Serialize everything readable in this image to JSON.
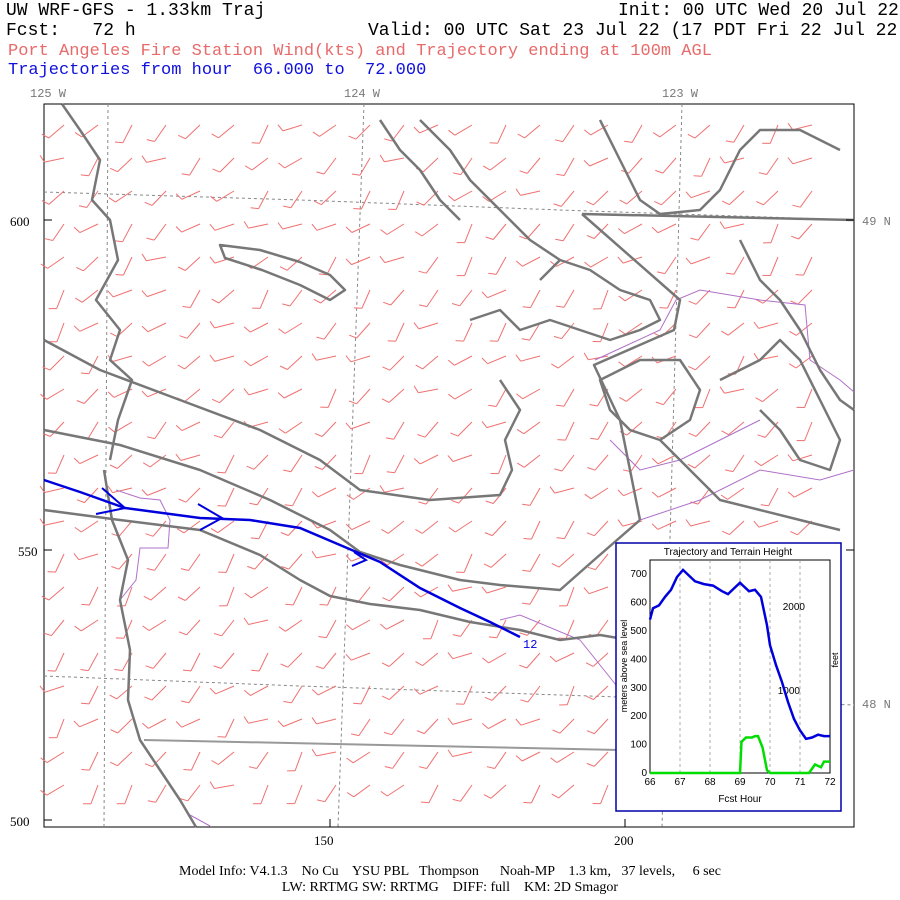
{
  "header": {
    "title": "UW WRF-GFS - 1.33km Traj",
    "init": "Init: 00 UTC Wed 20 Jul 22",
    "fcst": "Fcst:   72 h",
    "valid": "Valid: 00 UTC Sat 23 Jul 22 (17 PDT Fri 22 Jul 22)",
    "subtitle": "Port Angeles Fire Station Wind(kts) and Trajectory ending at 100m AGL",
    "traj_range": "Trajectories from hour  66.000 to  72.000"
  },
  "map": {
    "lon_labels": [
      "125 W",
      "124 W",
      "123 W"
    ],
    "lat_labels": [
      "49 N",
      "48 N"
    ],
    "y_ticks": [
      "600",
      "550",
      "500"
    ],
    "x_ticks": [
      "150",
      "200"
    ],
    "trajectory_end_label": "12",
    "colors": {
      "coast": "#777777",
      "wind_barb": "#f07070",
      "trajectory": "#0000dd",
      "county": "#b070c8",
      "grid": "#888888"
    }
  },
  "inset": {
    "title": "Trajectory and Terrain Height",
    "xlabel": "Fcst Hour",
    "ylabel_left": "meters above sea level",
    "ylabel_right": "feet",
    "x_ticks": [
      "66",
      "67",
      "68",
      "69",
      "70",
      "71",
      "72"
    ],
    "y_ticks_left": [
      "0",
      "100",
      "200",
      "300",
      "400",
      "500",
      "600",
      "700"
    ],
    "y_ticks_right": [
      "1000",
      "2000"
    ]
  },
  "chart_data": {
    "type": "line",
    "title": "Trajectory and Terrain Height",
    "xlabel": "Fcst Hour",
    "ylabel": "meters above sea level",
    "xlim": [
      66,
      72
    ],
    "ylim": [
      0,
      750
    ],
    "series": [
      {
        "color": "#0000dd",
        "x": [
          66.0,
          66.1,
          66.3,
          66.5,
          66.7,
          66.9,
          67.1,
          67.3,
          67.5,
          67.8,
          68.1,
          68.4,
          68.6,
          68.8,
          69.0,
          69.1,
          69.3,
          69.5,
          69.7,
          69.9,
          70.0,
          70.2,
          70.4,
          70.6,
          70.8,
          71.0,
          71.2,
          71.4,
          71.6,
          71.8,
          72.0
        ],
        "values": [
          540,
          580,
          590,
          620,
          645,
          690,
          715,
          695,
          675,
          665,
          660,
          640,
          630,
          650,
          670,
          660,
          640,
          645,
          620,
          520,
          450,
          380,
          320,
          250,
          190,
          150,
          120,
          125,
          135,
          130,
          130
        ]
      },
      {
        "color": "#00dd00",
        "x": [
          66.0,
          66.5,
          67.0,
          67.5,
          68.0,
          68.5,
          68.8,
          69.0,
          69.05,
          69.2,
          69.4,
          69.5,
          69.6,
          69.75,
          69.9,
          70.0,
          70.5,
          71.0,
          71.3,
          71.5,
          71.7,
          71.8,
          72.0
        ],
        "values": [
          0,
          0,
          0,
          0,
          0,
          0,
          0,
          0,
          110,
          125,
          125,
          130,
          130,
          90,
          10,
          0,
          0,
          0,
          0,
          30,
          20,
          40,
          40
        ]
      }
    ]
  },
  "footer": {
    "line1": "Model Info: V4.1.3    No Cu    YSU PBL   Thompson      Noah-MP    1.3 km,   37 levels,     6 sec",
    "line2": "LW: RRTMG SW: RRTMG    DIFF: full    KM: 2D Smagor"
  }
}
